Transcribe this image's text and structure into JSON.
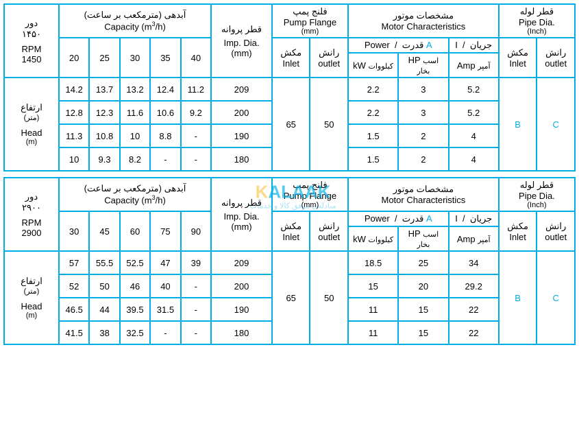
{
  "border_color": "#00aee6",
  "cyan_text_color": "#00aee6",
  "watermark_yellow": "#fbbf24",
  "watermark": {
    "letter1": "K",
    "rest": "ALAAK",
    "sub": "مبادله‌ی موفق کالا و خدمات"
  },
  "labels": {
    "rpm_ar": "دور",
    "rpm_en": "RPM",
    "capacity_ar": "آبدهی (مترمکعب بر ساعت)",
    "capacity_en_pre": "Capacity (m",
    "capacity_en_sup": "3",
    "capacity_en_post": "/h)",
    "impdia_ar": "قطر پروانه",
    "impdia_en": "Imp. Dia.",
    "mm": "(mm)",
    "flange_ar": "فلنج پمپ",
    "flange_en": "Pump Flange",
    "motor_ar": "مشخصات موتور",
    "motor_en": "Motor Characteristics",
    "pipe_ar": "قطر لوله",
    "pipe_en": "Pipe Dia.",
    "inch": "(Inch)",
    "inlet_ar": "مکش",
    "inlet_en": "Inlet",
    "outlet_ar": "رانش",
    "outlet_en": "outlet",
    "power_en": "Power",
    "power_ar": "قدرت",
    "i_en": "I",
    "i_ar": "جریان",
    "slash": "/",
    "kw": "kW",
    "kw_ar": "کیلووات",
    "hp": "HP",
    "hp_ar": "اسب بخار",
    "amp": "Amp",
    "amp_ar": "آمپر",
    "head_ar": "ارتفاع",
    "head_m_ar": "(متر)",
    "head_en": "Head",
    "head_m_en": "(m)",
    "A": "A",
    "B": "B",
    "C": "C"
  },
  "t1": {
    "rpm_ar_val": "۱۴۵۰",
    "rpm_val": "1450",
    "caps": [
      "20",
      "25",
      "30",
      "35",
      "40"
    ],
    "inlet": "65",
    "outlet": "50",
    "rows": [
      {
        "h": [
          "14.2",
          "13.7",
          "13.2",
          "12.4",
          "11.2"
        ],
        "dia": "209",
        "kw": "2.2",
        "hp": "3",
        "amp": "5.2"
      },
      {
        "h": [
          "12.8",
          "12.3",
          "11.6",
          "10.6",
          "9.2"
        ],
        "dia": "200",
        "kw": "2.2",
        "hp": "3",
        "amp": "5.2"
      },
      {
        "h": [
          "11.3",
          "10.8",
          "10",
          "8.8",
          "-"
        ],
        "dia": "190",
        "kw": "1.5",
        "hp": "2",
        "amp": "4"
      },
      {
        "h": [
          "10",
          "9.3",
          "8.2",
          "-",
          "-"
        ],
        "dia": "180",
        "kw": "1.5",
        "hp": "2",
        "amp": "4"
      }
    ]
  },
  "t2": {
    "rpm_ar_val": "۲۹۰۰",
    "rpm_val": "2900",
    "caps": [
      "30",
      "45",
      "60",
      "75",
      "90"
    ],
    "inlet": "65",
    "outlet": "50",
    "rows": [
      {
        "h": [
          "57",
          "55.5",
          "52.5",
          "47",
          "39"
        ],
        "dia": "209",
        "kw": "18.5",
        "hp": "25",
        "amp": "34"
      },
      {
        "h": [
          "52",
          "50",
          "46",
          "40",
          "-"
        ],
        "dia": "200",
        "kw": "15",
        "hp": "20",
        "amp": "29.2"
      },
      {
        "h": [
          "46.5",
          "44",
          "39.5",
          "31.5",
          "-"
        ],
        "dia": "190",
        "kw": "11",
        "hp": "15",
        "amp": "22"
      },
      {
        "h": [
          "41.5",
          "38",
          "32.5",
          "-",
          "-"
        ],
        "dia": "180",
        "kw": "11",
        "hp": "15",
        "amp": "22"
      }
    ]
  }
}
